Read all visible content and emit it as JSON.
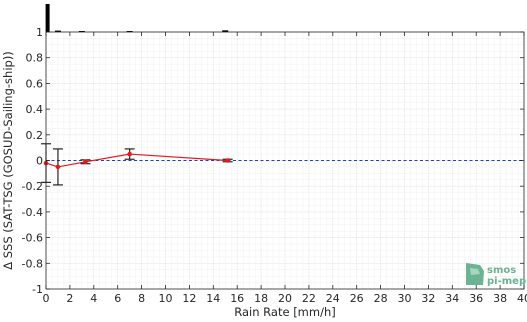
{
  "chart_data": {
    "type": "line",
    "xlabel": "Rain Rate [mm/h]",
    "ylabel": "Δ SSS (SAT-TSG (GOSUD-Sailing-ship))",
    "xlim": [
      0,
      40
    ],
    "ylim": [
      -1,
      1
    ],
    "x_ticks": [
      0,
      2,
      4,
      6,
      8,
      10,
      12,
      14,
      16,
      18,
      20,
      22,
      24,
      26,
      28,
      30,
      32,
      34,
      36,
      38,
      40
    ],
    "y_ticks": [
      1,
      0.8,
      0.6,
      0.4,
      0.2,
      0,
      -0.2,
      -0.4,
      -0.6,
      -0.8,
      -1
    ],
    "y_tick_labels": [
      "1",
      "0.8",
      "0.6",
      "0.4",
      "0.2",
      "0",
      "-0.2",
      "-0.4",
      "-0.6",
      "-0.8",
      "-1"
    ],
    "grid": true,
    "reference_line": {
      "y": 0,
      "style": "dashed",
      "color": "#1f3fbf"
    },
    "series": [
      {
        "color": "#e41a1c",
        "points": [
          {
            "x": 0.0,
            "y": -0.02,
            "err": 0.15
          },
          {
            "x": 1.0,
            "y": -0.05,
            "err": 0.14
          },
          {
            "x": 3.3,
            "y": -0.01,
            "err": 0.015
          },
          {
            "x": 7.0,
            "y": 0.05,
            "err": 0.04
          },
          {
            "x": 15.2,
            "y": 0.0,
            "err": 0.01
          }
        ]
      }
    ],
    "histogram": {
      "bin_centers": [
        0.05,
        1,
        3,
        7,
        15
      ],
      "relative_heights": [
        1.0,
        0.05,
        0.03,
        0.03,
        0.06
      ],
      "color": "#000000"
    }
  },
  "watermark": {
    "line1": "smos",
    "line2": "pi-mep",
    "color": "#6cb394"
  }
}
